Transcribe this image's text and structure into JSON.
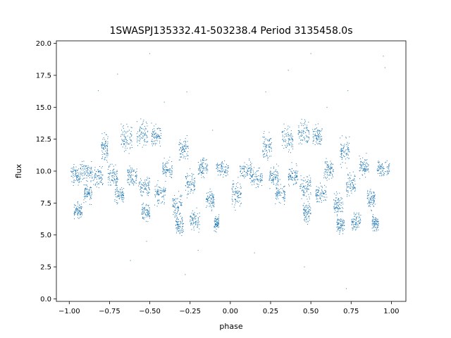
{
  "chart_data": {
    "type": "scatter",
    "title": "1SWASPJ135332.41-503238.4 Period 3135458.0s",
    "xlabel": "phase",
    "ylabel": "flux",
    "xlim": [
      -1.08,
      1.09
    ],
    "ylim": [
      -0.2,
      20.2
    ],
    "xticks": [
      -1.0,
      -0.75,
      -0.5,
      -0.25,
      0.0,
      0.25,
      0.5,
      0.75,
      1.0
    ],
    "xtick_labels": [
      "−1.00",
      "−0.75",
      "−0.50",
      "−0.25",
      "0.00",
      "0.25",
      "0.50",
      "0.75",
      "1.00"
    ],
    "yticks": [
      0.0,
      2.5,
      5.0,
      7.5,
      10.0,
      12.5,
      15.0,
      17.5,
      20.0
    ],
    "ytick_labels": [
      "0.0",
      "2.5",
      "5.0",
      "7.5",
      "10.0",
      "12.5",
      "15.0",
      "17.5",
      "20.0"
    ],
    "grid": false,
    "marker_color": "#1f77b4",
    "series": [
      {
        "clusters": [
          {
            "x": [
              -0.99,
              -0.93
            ],
            "y": 9.7,
            "spread": 0.6
          },
          {
            "x": [
              -0.97,
              -0.92
            ],
            "y": 6.9,
            "spread": 0.5
          },
          {
            "x": [
              -0.93,
              -0.86
            ],
            "y": 10.0,
            "spread": 0.6
          },
          {
            "x": [
              -0.91,
              -0.86
            ],
            "y": 8.3,
            "spread": 0.6
          },
          {
            "x": [
              -0.86,
              -0.79
            ],
            "y": 9.6,
            "spread": 0.7
          },
          {
            "x": [
              -0.8,
              -0.76
            ],
            "y": 11.8,
            "spread": 0.9
          },
          {
            "x": [
              -0.76,
              -0.7
            ],
            "y": 9.5,
            "spread": 0.7
          },
          {
            "x": [
              -0.72,
              -0.66
            ],
            "y": 8.3,
            "spread": 0.7
          },
          {
            "x": [
              -0.68,
              -0.61
            ],
            "y": 12.5,
            "spread": 0.8
          },
          {
            "x": [
              -0.64,
              -0.58
            ],
            "y": 9.6,
            "spread": 0.6
          },
          {
            "x": [
              -0.58,
              -0.51
            ],
            "y": 13.0,
            "spread": 0.8
          },
          {
            "x": [
              -0.57,
              -0.5
            ],
            "y": 8.8,
            "spread": 0.7
          },
          {
            "x": [
              -0.55,
              -0.5
            ],
            "y": 6.8,
            "spread": 0.6
          },
          {
            "x": [
              -0.49,
              -0.43
            ],
            "y": 12.8,
            "spread": 0.7
          },
          {
            "x": [
              -0.47,
              -0.4
            ],
            "y": 8.2,
            "spread": 0.6
          },
          {
            "x": [
              -0.42,
              -0.36
            ],
            "y": 10.1,
            "spread": 0.6
          },
          {
            "x": [
              -0.36,
              -0.3
            ],
            "y": 7.4,
            "spread": 0.7
          },
          {
            "x": [
              -0.34,
              -0.29
            ],
            "y": 5.8,
            "spread": 0.6
          },
          {
            "x": [
              -0.32,
              -0.26
            ],
            "y": 11.6,
            "spread": 0.8
          },
          {
            "x": [
              -0.28,
              -0.22
            ],
            "y": 9.0,
            "spread": 0.7
          },
          {
            "x": [
              -0.25,
              -0.19
            ],
            "y": 6.1,
            "spread": 0.6
          },
          {
            "x": [
              -0.2,
              -0.14
            ],
            "y": 10.3,
            "spread": 0.6
          },
          {
            "x": [
              -0.15,
              -0.1
            ],
            "y": 7.8,
            "spread": 0.6
          },
          {
            "x": [
              -0.1,
              -0.07
            ],
            "y": 5.9,
            "spread": 0.5
          },
          {
            "x": [
              -0.09,
              -0.01
            ],
            "y": 10.2,
            "spread": 0.5
          },
          {
            "x": [
              0.01,
              0.07
            ],
            "y": 8.2,
            "spread": 0.8
          },
          {
            "x": [
              0.06,
              0.14
            ],
            "y": 10.1,
            "spread": 0.5
          },
          {
            "x": [
              0.12,
              0.2
            ],
            "y": 9.5,
            "spread": 0.6
          },
          {
            "x": [
              0.2,
              0.26
            ],
            "y": 11.9,
            "spread": 0.9
          },
          {
            "x": [
              0.24,
              0.3
            ],
            "y": 9.6,
            "spread": 0.7
          },
          {
            "x": [
              0.28,
              0.34
            ],
            "y": 8.3,
            "spread": 0.7
          },
          {
            "x": [
              0.32,
              0.39
            ],
            "y": 12.5,
            "spread": 0.8
          },
          {
            "x": [
              0.36,
              0.42
            ],
            "y": 9.6,
            "spread": 0.6
          },
          {
            "x": [
              0.42,
              0.49
            ],
            "y": 13.0,
            "spread": 0.8
          },
          {
            "x": [
              0.43,
              0.5
            ],
            "y": 8.8,
            "spread": 0.7
          },
          {
            "x": [
              0.45,
              0.5
            ],
            "y": 6.8,
            "spread": 0.6
          },
          {
            "x": [
              0.51,
              0.57
            ],
            "y": 12.8,
            "spread": 0.7
          },
          {
            "x": [
              0.53,
              0.6
            ],
            "y": 8.2,
            "spread": 0.6
          },
          {
            "x": [
              0.58,
              0.64
            ],
            "y": 10.1,
            "spread": 0.6
          },
          {
            "x": [
              0.64,
              0.7
            ],
            "y": 7.4,
            "spread": 0.7
          },
          {
            "x": [
              0.66,
              0.71
            ],
            "y": 5.8,
            "spread": 0.6
          },
          {
            "x": [
              0.68,
              0.74
            ],
            "y": 11.6,
            "spread": 0.8
          },
          {
            "x": [
              0.72,
              0.78
            ],
            "y": 9.0,
            "spread": 0.7
          },
          {
            "x": [
              0.75,
              0.81
            ],
            "y": 6.1,
            "spread": 0.6
          },
          {
            "x": [
              0.8,
              0.86
            ],
            "y": 10.3,
            "spread": 0.6
          },
          {
            "x": [
              0.85,
              0.9
            ],
            "y": 7.8,
            "spread": 0.6
          },
          {
            "x": [
              0.88,
              0.92
            ],
            "y": 5.9,
            "spread": 0.5
          },
          {
            "x": [
              0.91,
              0.99
            ],
            "y": 10.2,
            "spread": 0.5
          }
        ],
        "outliers": [
          [
            -0.82,
            16.3
          ],
          [
            -0.7,
            17.6
          ],
          [
            -0.5,
            19.2
          ],
          [
            -0.41,
            15.4
          ],
          [
            -0.27,
            16.2
          ],
          [
            -0.11,
            13.2
          ],
          [
            0.22,
            16.2
          ],
          [
            0.36,
            17.9
          ],
          [
            0.5,
            19.2
          ],
          [
            0.6,
            15.0
          ],
          [
            0.73,
            16.3
          ],
          [
            0.95,
            19.0
          ],
          [
            0.96,
            18.1
          ],
          [
            -0.62,
            3.0
          ],
          [
            -0.28,
            1.9
          ],
          [
            -0.2,
            3.8
          ],
          [
            0.46,
            2.5
          ],
          [
            0.72,
            0.8
          ],
          [
            0.15,
            3.6
          ],
          [
            -0.52,
            4.5
          ]
        ]
      }
    ]
  }
}
